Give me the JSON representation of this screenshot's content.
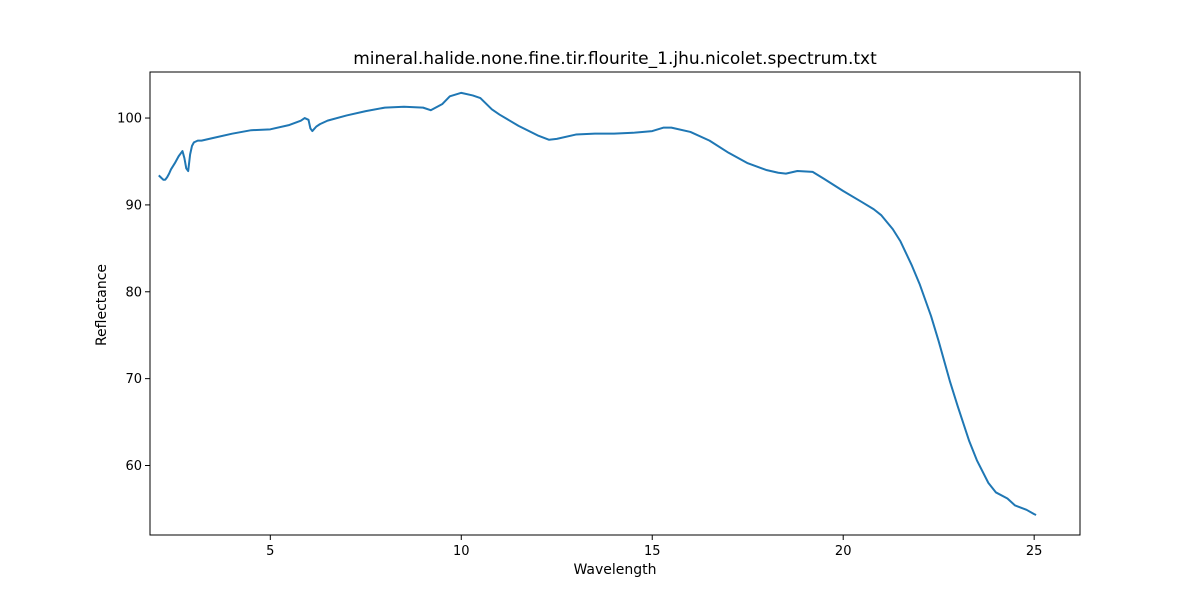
{
  "chart_data": {
    "type": "line",
    "title": "mineral.halide.none.fine.tir.flourite_1.jhu.nicolet.spectrum.txt",
    "xlabel": "Wavelength",
    "ylabel": "Reflectance",
    "xlim": [
      1.85,
      26.2
    ],
    "ylim": [
      52.0,
      105.3
    ],
    "xticks": [
      5,
      10,
      15,
      20,
      25
    ],
    "yticks": [
      60,
      70,
      80,
      90,
      100
    ],
    "grid": false,
    "series": [
      {
        "color": "#1f77b4",
        "x": [
          2.08,
          2.15,
          2.2,
          2.25,
          2.3,
          2.35,
          2.4,
          2.5,
          2.6,
          2.7,
          2.75,
          2.8,
          2.85,
          2.9,
          2.95,
          3.0,
          3.1,
          3.2,
          3.3,
          3.5,
          4.0,
          4.5,
          5.0,
          5.5,
          5.8,
          5.9,
          6.0,
          6.05,
          6.1,
          6.2,
          6.3,
          6.5,
          7.0,
          7.5,
          8.0,
          8.5,
          9.0,
          9.2,
          9.5,
          9.7,
          10.0,
          10.3,
          10.5,
          10.8,
          11.0,
          11.5,
          12.0,
          12.3,
          12.5,
          13.0,
          13.5,
          14.0,
          14.5,
          15.0,
          15.3,
          15.5,
          16.0,
          16.5,
          17.0,
          17.5,
          18.0,
          18.3,
          18.5,
          18.8,
          19.2,
          19.5,
          20.0,
          20.5,
          20.8,
          21.0,
          21.3,
          21.5,
          21.8,
          22.0,
          22.3,
          22.5,
          22.8,
          23.0,
          23.3,
          23.5,
          23.8,
          24.0,
          24.3,
          24.5,
          24.8,
          25.0,
          25.05
        ],
        "y": [
          93.4,
          93.1,
          92.9,
          92.9,
          93.2,
          93.6,
          94.1,
          94.8,
          95.6,
          96.2,
          95.4,
          94.2,
          93.9,
          95.8,
          96.8,
          97.2,
          97.4,
          97.4,
          97.5,
          97.7,
          98.2,
          98.6,
          98.7,
          99.2,
          99.7,
          100.0,
          99.8,
          98.8,
          98.5,
          99.0,
          99.3,
          99.7,
          100.3,
          100.8,
          101.2,
          101.3,
          101.2,
          100.9,
          101.6,
          102.5,
          102.9,
          102.6,
          102.3,
          101.0,
          100.4,
          99.1,
          98.0,
          97.5,
          97.6,
          98.1,
          98.2,
          98.2,
          98.3,
          98.5,
          98.9,
          98.9,
          98.4,
          97.4,
          96.0,
          94.8,
          94.0,
          93.7,
          93.6,
          93.9,
          93.8,
          93.0,
          91.6,
          90.3,
          89.5,
          88.8,
          87.2,
          85.8,
          83.0,
          80.9,
          77.2,
          74.3,
          69.6,
          66.8,
          62.8,
          60.6,
          58.0,
          56.9,
          56.2,
          55.4,
          54.9,
          54.4,
          54.3
        ]
      }
    ]
  }
}
